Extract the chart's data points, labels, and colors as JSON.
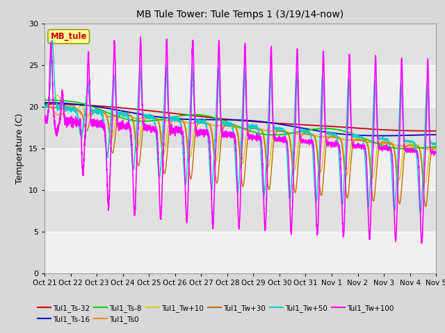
{
  "title": "MB Tule Tower: Tule Temps 1 (3/19/14-now)",
  "ylabel": "Temperature (C)",
  "ylim": [
    0,
    30
  ],
  "bg_color": "#d8d8d8",
  "plot_bg_color": "#e8e8e8",
  "grid_color": "#ffffff",
  "xtick_labels": [
    "Oct 21",
    "Oct 22",
    "Oct 23",
    "Oct 24",
    "Oct 25",
    "Oct 26",
    "Oct 27",
    "Oct 28",
    "Oct 29",
    "Oct 30",
    "Oct 31",
    "Nov 1",
    "Nov 2",
    "Nov 3",
    "Nov 4",
    "Nov 5"
  ],
  "ytick_labels": [
    0,
    5,
    10,
    15,
    20,
    25,
    30
  ],
  "series_colors": {
    "Tul1_Ts-32": "#cc0000",
    "Tul1_Ts-16": "#0000cc",
    "Tul1_Ts-8": "#00cc00",
    "Tul1_Ts0": "#ff8800",
    "Tul1_Tw+10": "#cccc00",
    "Tul1_Tw+30": "#cc6600",
    "Tul1_Tw+50": "#00cccc",
    "Tul1_Tw+100": "#ff00ff"
  }
}
